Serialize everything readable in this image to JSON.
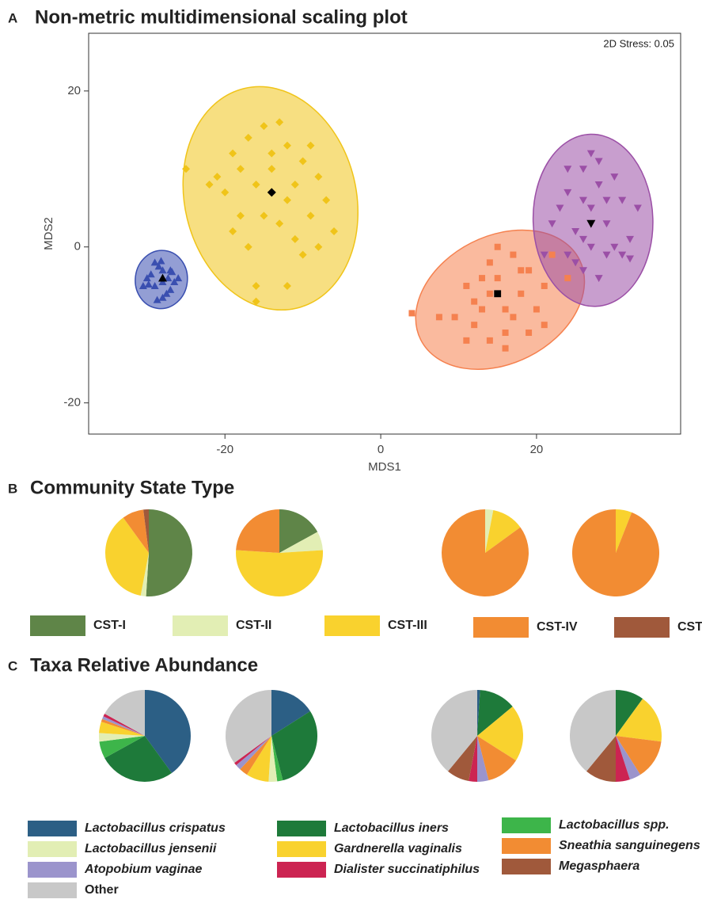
{
  "chart_data": [
    {
      "type": "scatter",
      "panel": "A",
      "title": "Non-metric multidimensional scaling plot",
      "x_label": "MDS1",
      "y_label": "MDS2",
      "annotation": "2D Stress: 0.05",
      "xlim": [
        -37.5,
        38.5
      ],
      "ylim": [
        -24,
        27.4
      ],
      "xticks": [
        -20,
        0,
        20
      ],
      "yticks": [
        -20,
        0,
        20
      ],
      "series": [
        {
          "color": "#3a4fb0",
          "marker": "triangle",
          "x": [
            -28,
            -27,
            -29,
            -30,
            -26.5,
            -28.5,
            -27.5,
            -29.5,
            -26,
            -30.5,
            -28,
            -27,
            -29,
            -28,
            -26.8,
            -29.8,
            -28.2,
            -27.3,
            -28.7,
            -28
          ],
          "y": [
            -4,
            -3,
            -5,
            -4,
            -4.5,
            -2.5,
            -6,
            -3.5,
            -4,
            -5,
            -6.5,
            -5.5,
            -2,
            -3,
            -3.2,
            -4.8,
            -1.8,
            -4,
            -6.8,
            -4.5
          ],
          "centroid": {
            "marker": "triangle",
            "x": -28,
            "y": -4
          }
        },
        {
          "color": "#f0c419",
          "marker": "diamond",
          "x": [
            -25,
            -21,
            -19,
            -17,
            -15,
            -13,
            -12,
            -10,
            -8,
            -6,
            -7,
            -9,
            -11,
            -12,
            -16,
            -16,
            -18,
            -20,
            -22,
            -14,
            -16,
            -13,
            -10,
            -17,
            -19,
            -11,
            -14,
            -9,
            -18,
            -15,
            -12,
            -8
          ],
          "y": [
            10,
            9,
            12,
            14,
            15.5,
            16,
            13,
            11,
            9,
            2,
            6,
            4,
            1,
            -5,
            -5,
            -7,
            4,
            7,
            8,
            10,
            8,
            3,
            -1,
            0,
            2,
            8,
            12,
            13,
            10,
            4,
            6,
            0
          ],
          "centroid": {
            "marker": "diamond",
            "x": -14,
            "y": 7
          }
        },
        {
          "color": "#f5814f",
          "marker": "square",
          "x": [
            4,
            7.5,
            9.5,
            11,
            12,
            13,
            14,
            15,
            17,
            19,
            21,
            24,
            21,
            19,
            16,
            14,
            12,
            16,
            18,
            13,
            15,
            17,
            20,
            22,
            11,
            14,
            18,
            16
          ],
          "y": [
            -8.5,
            -9,
            -9,
            -12,
            -7,
            -4,
            -2,
            0,
            -1,
            -3,
            -5,
            -4,
            -10,
            -11,
            -13,
            -12,
            -10,
            -8,
            -6,
            -8,
            -4,
            -9,
            -8,
            -1,
            -5,
            -6,
            -3,
            -11
          ],
          "centroid": {
            "marker": "square",
            "x": 15,
            "y": -6
          }
        },
        {
          "color": "#9b4fa6",
          "marker": "triangle-down",
          "x": [
            24,
            26,
            27,
            28,
            30,
            31,
            33,
            32,
            29,
            28,
            26,
            24,
            22,
            21,
            23,
            25,
            27,
            29,
            30,
            26,
            28,
            25,
            31,
            32,
            27,
            24,
            29,
            26
          ],
          "y": [
            7,
            10,
            12,
            11,
            9,
            6,
            5,
            1,
            -1,
            -4,
            -3,
            -1,
            3,
            -1,
            5,
            2,
            5,
            3,
            0,
            6,
            8,
            -2,
            -1,
            -1.5,
            0,
            10,
            6,
            1
          ],
          "centroid": {
            "marker": "triangle-down",
            "x": 27,
            "y": 3
          }
        }
      ]
    },
    {
      "type": "pie",
      "panel": "B",
      "title": "Community State Type",
      "series": [
        {
          "name": "CST-I",
          "color": "#5f8548",
          "values": [
            51,
            17,
            0,
            0
          ]
        },
        {
          "name": "CST-II",
          "color": "#e2eeb4",
          "values": [
            2,
            7,
            3,
            0
          ]
        },
        {
          "name": "CST-III",
          "color": "#f9d22e",
          "values": [
            37,
            52,
            12,
            6
          ]
        },
        {
          "name": "CST-IV",
          "color": "#f28c33",
          "values": [
            8,
            24,
            85,
            94
          ]
        },
        {
          "name": "CST-V",
          "color": "#a0593b",
          "values": [
            2,
            0,
            0,
            0
          ]
        }
      ]
    },
    {
      "type": "pie",
      "panel": "C",
      "title": "Taxa Relative Abundance",
      "series": [
        {
          "name": "Lactobacillus crispatus",
          "italic": true,
          "color": "#2c5f85",
          "values": [
            40,
            16,
            1,
            0
          ]
        },
        {
          "name": "Lactobacillus iners",
          "italic": true,
          "color": "#1e7a3a",
          "values": [
            27,
            30,
            13,
            10
          ]
        },
        {
          "name": "Lactobacillus spp.",
          "italic": true,
          "color": "#3db54a",
          "values": [
            6,
            2,
            0,
            0
          ]
        },
        {
          "name": "Lactobacillus jensenii",
          "italic": true,
          "color": "#e2eeb4",
          "values": [
            3,
            3,
            0,
            0
          ]
        },
        {
          "name": "Gardnerella vaginalis",
          "italic": true,
          "color": "#f9d22e",
          "values": [
            4,
            8,
            20,
            17
          ]
        },
        {
          "name": "Sneathia sanguinegens",
          "italic": true,
          "color": "#f28c33",
          "values": [
            1,
            3,
            12,
            14
          ]
        },
        {
          "name": "Atopobium vaginae",
          "italic": true,
          "color": "#9b94cc",
          "values": [
            1,
            2,
            4,
            4
          ]
        },
        {
          "name": "Dialister succinatiphilus",
          "italic": true,
          "color": "#cc2452",
          "values": [
            1,
            1,
            3,
            5
          ]
        },
        {
          "name": "Megasphaera",
          "italic": true,
          "color": "#a0593b",
          "values": [
            0,
            0,
            8,
            11
          ]
        },
        {
          "name": "Other",
          "italic": false,
          "color": "#c8c8c8",
          "values": [
            17,
            35,
            39,
            39
          ]
        }
      ]
    }
  ]
}
